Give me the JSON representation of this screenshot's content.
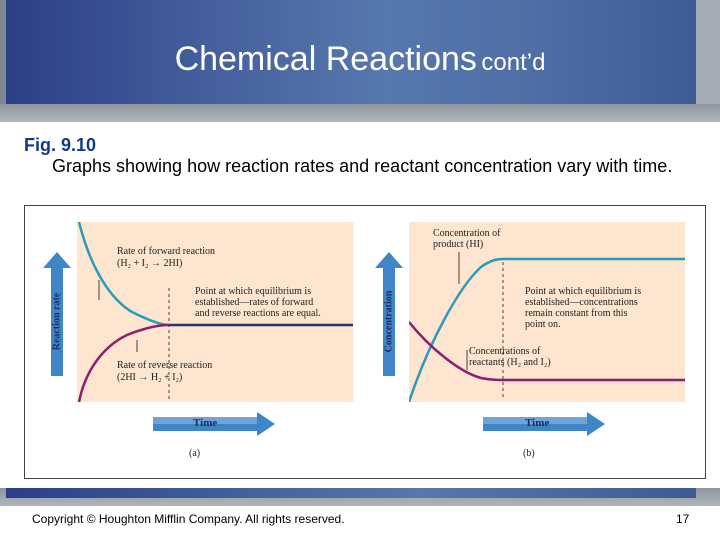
{
  "slide": {
    "title_main": "Chemical Reactions",
    "title_sub": "cont’d",
    "fig_label": "Fig. 9.10",
    "caption": "Graphs showing how reaction rates and reactant concentration vary with time.",
    "copyright": "Copyright © Houghton Mifflin Company. All rights reserved.",
    "page_number": "17"
  },
  "panel_a": {
    "y_axis": "Reaction rate",
    "x_axis": "Time",
    "letter": "(a)",
    "forward_label_1": "Rate of forward reaction",
    "forward_label_2": "(H₂ + I₂ → 2HI)",
    "eq_label_1": "Point at which equilibrium is",
    "eq_label_2": "established—rates of forward",
    "eq_label_3": "and reverse reactions are equal.",
    "reverse_label_1": "Rate of reverse reaction",
    "reverse_label_2": "(2HI → H₂ + I₂)"
  },
  "panel_b": {
    "y_axis": "Concentration",
    "x_axis": "Time",
    "letter": "(b)",
    "product_label_1": "Concentration of",
    "product_label_2": "product (HI)",
    "eq_label_1": "Point at which equilibrium is",
    "eq_label_2": "established—concentrations",
    "eq_label_3": "remain constant from this",
    "eq_label_4": "point on.",
    "reactant_label_1": "Concentrations of",
    "reactant_label_2": "reactants (H₂ and I₂)"
  },
  "colors": {
    "forward_curve": "#2a9bb8",
    "reverse_curve": "#8b1f6e",
    "equilibrium_line": "#2d2f6e",
    "plot_background": "#fde5cf",
    "arrow_blue": "#3f86c9"
  }
}
